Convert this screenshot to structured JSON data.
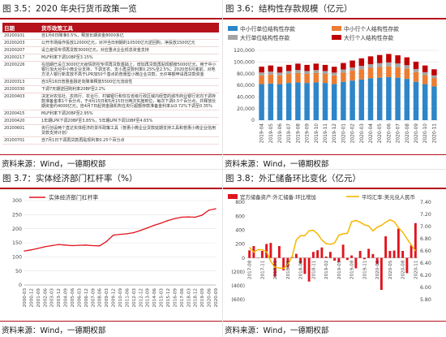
{
  "panels": {
    "p1": {
      "title": "图 3.5：2020 年央行货币政策一览",
      "source": "资料来源：Wind，一德期权部",
      "table_headers": [
        "日期",
        "货币政策工具"
      ],
      "rows": [
        [
          "20200101",
          "自1月6日降准0.5%，释放长期资金8000多亿"
        ],
        [
          "20200203",
          "公开市场操作投放12000亿元，对冲当日到期的10500亿元逆回购，净投放1500亿元"
        ],
        [
          "20200207",
          "设立疫情专项再贷款3000亿元，对应重点企业低息资金支持"
        ],
        [
          "20200217",
          "MLF利率下调10BP至3.15%"
        ],
        [
          "20200226",
          "在前期已设立3000亿元疫情防控专项再贷款基础上，增加再贷款再贴现额度5000亿元，用于中小银行加大对中小微企业支持，下调支农、支小再贷款利率0.25%至2.5%；2020年6月底前，对地方法人银行新发放不高于LPR加50个基点的普惠型小微企业贷款，允许等额申请再贷款资金"
        ],
        [
          "20200313",
          "自3月16日普惠金融定向降准释放5500亿元流动性"
        ],
        [
          "20200330",
          "下调7天期逆回购利率20BP至2.2%"
        ],
        [
          "20200403",
          "决定对农信社、农商行、农合行、村镇银行和仅在省级行政区域内经营的城市商业银行定向下调存款准备金率1个百分点，于4月15日和5月15日分两次实施到位，每次下调0.5个百分点，共释放长期资金约4000亿元；自4月7日起将金融机构在央行超额存款准备金利率从0.72%下调至0.35%"
        ],
        [
          "20200415",
          "MLF利率下调20BP至2.95%"
        ],
        [
          "20200420",
          "1年期LPR下调20BP至3.85%，5年期LPR下调10BP至4.65%"
        ],
        [
          "20200601",
          "央行创设两个直达实体经济的货币政策工具（普惠小微企业贷款延期支持工具和普惠小微企业信用贷款支持计划）"
        ],
        [
          "20200701",
          "自7月1日下调再贷款再贴现利率0.25个百分点"
        ]
      ]
    },
    "p2": {
      "title": "图 3.6：结构性存款规模（亿元）",
      "source": "资料来源：Wind，一德期权部"
    },
    "p3": {
      "title": "图 3.7：实体经济部门杠杆率（%）",
      "source": "资料来源：Wind，一德期权部"
    },
    "p4": {
      "title": "图 3.8：外汇储备环比变化（亿元）",
      "source": "资料来源：Wind，一德期权部"
    }
  },
  "colors": {
    "accent": "#b5121b",
    "blue": "#2e86c8",
    "orange": "#ed7d31",
    "gray": "#a5a5a5",
    "red": "#e0141e",
    "gold": "#f5b700"
  },
  "chart_data": [
    {
      "id": "structured-deposits",
      "type": "bar",
      "stacked": true,
      "legend_position": "top",
      "categories": [
        "2019-04",
        "2019-05",
        "2019-06",
        "2019-07",
        "2019-08",
        "2019-09",
        "2019-10",
        "2019-11",
        "2019-12",
        "2020-01",
        "2020-02",
        "2020-03",
        "2020-04",
        "2020-05",
        "2020-06",
        "2020-07",
        "2020-08",
        "2020-09",
        "2020-10",
        "2020-11"
      ],
      "x_tick_labels": [
        "2019-04",
        "2019-05",
        "2019-06",
        "2019-07",
        "2019-08",
        "2019-09",
        "2019-10",
        "2019-11",
        "2019-12",
        "2020-01",
        "2020-02",
        "2020-03",
        "2020-04",
        "2020-05",
        "2020-06",
        "2020-07",
        "2020-08",
        "2020-09",
        "2020-10",
        "2020-11"
      ],
      "series": [
        {
          "name": "中小行单位结构性存款",
          "color": "#2e86c8",
          "values": [
            62000,
            63000,
            62000,
            64000,
            65000,
            64000,
            65000,
            64000,
            62000,
            66000,
            68000,
            70000,
            72000,
            73000,
            74000,
            73000,
            71000,
            66000,
            62000,
            58000
          ]
        },
        {
          "name": "中小行个人结构性存款",
          "color": "#ed7d31",
          "values": [
            15000,
            15500,
            15000,
            15500,
            16000,
            15500,
            16000,
            15500,
            15000,
            16000,
            17000,
            17500,
            18000,
            18500,
            18500,
            18000,
            17500,
            16500,
            15500,
            14500
          ]
        },
        {
          "name": "大行单位结构性存款",
          "color": "#a5a5a5",
          "values": [
            5000,
            5000,
            4800,
            5000,
            5200,
            5000,
            5200,
            5000,
            4800,
            5200,
            5500,
            5800,
            6200,
            6500,
            6800,
            6500,
            6000,
            5500,
            5000,
            4500
          ]
        },
        {
          "name": "大行个人结构性存款",
          "color": "#c00000",
          "values": [
            10000,
            10500,
            10000,
            10500,
            11000,
            10500,
            11000,
            10500,
            10000,
            11000,
            12000,
            13000,
            13500,
            14000,
            14500,
            14000,
            13500,
            12500,
            11500,
            10500
          ]
        }
      ],
      "ylim": [
        0,
        120000
      ],
      "yticks": [
        0,
        20000,
        40000,
        60000,
        80000,
        100000,
        120000
      ],
      "ytick_labels": [
        "0",
        "20,000",
        "40,000",
        "60,000",
        "80,000",
        "100,000",
        "120,000"
      ],
      "grid": true
    },
    {
      "id": "real-economy-leverage",
      "type": "line",
      "legend_position": "top-left",
      "series": [
        {
          "name": "实体经济部门杠杆率",
          "color": "#e0141e"
        }
      ],
      "x": [
        "2000-03",
        "2000-12",
        "2001-09",
        "2002-06",
        "2003-03",
        "2003-12",
        "2004-09",
        "2005-06",
        "2006-03",
        "2006-12",
        "2007-09",
        "2008-06",
        "2009-03",
        "2009-12",
        "2010-09",
        "2011-06",
        "2012-03",
        "2012-12",
        "2013-09",
        "2014-06",
        "2015-03",
        "2015-12",
        "2016-09",
        "2017-06",
        "2018-03",
        "2018-12",
        "2019-09",
        "2020-06",
        "2020-09"
      ],
      "values": [
        121,
        125,
        130,
        136,
        140,
        144,
        142,
        140,
        141,
        142,
        140,
        139,
        154,
        177,
        180,
        182,
        186,
        194,
        203,
        212,
        220,
        229,
        236,
        241,
        242,
        241,
        248,
        266,
        271
      ],
      "x_tick_labels": [
        "2000-03",
        "2000-12",
        "2001-09",
        "2002-06",
        "2003-03",
        "2003-12",
        "2004-09",
        "2005-06",
        "2006-03",
        "2006-12",
        "2007-09",
        "2008-06",
        "2009-03",
        "2009-12",
        "2010-09",
        "2011-06",
        "2012-03",
        "2012-12",
        "2013-09",
        "2014-06",
        "2015-03",
        "2015-12",
        "2016-09",
        "2017-06",
        "2018-03",
        "2018-12",
        "2019-09",
        "2020-06",
        "2020-09"
      ],
      "ylim": [
        0,
        300
      ],
      "yticks": [
        0,
        50,
        100,
        150,
        200,
        250,
        300
      ],
      "grid": true
    },
    {
      "id": "fx-reserve-change",
      "type": "bar",
      "combo": "bar+line",
      "legend_position": "top",
      "categories": [
        "2017-08",
        "2017-09",
        "2017-10",
        "2017-11",
        "2017-12",
        "2018-01",
        "2018-02",
        "2018-03",
        "2018-04",
        "2018-05",
        "2018-06",
        "2018-07",
        "2018-08",
        "2018-09",
        "2018-10",
        "2018-11",
        "2018-12",
        "2019-01",
        "2019-02",
        "2019-03",
        "2019-04",
        "2019-05",
        "2019-06",
        "2019-07",
        "2019-08",
        "2019-09",
        "2019-10",
        "2019-11",
        "2019-12",
        "2020-01",
        "2020-02",
        "2020-03",
        "2020-04",
        "2020-05",
        "2020-06",
        "2020-07",
        "2020-08",
        "2020-09",
        "2020-10",
        "2020-11"
      ],
      "x_tick_labels": [
        "2017-08",
        "2017-11",
        "2018-02",
        "2018-05",
        "2018-08",
        "2018-11",
        "2019-02",
        "2019-05",
        "2019-08",
        "2019-11",
        "2020-02",
        "2020-05",
        "2020-08",
        "2020-11"
      ],
      "series": [
        {
          "name": "官方储备资产:外汇储备:环比增加",
          "type": "bar",
          "axis": "left",
          "color": "#e0141e",
          "values": [
            108,
            170,
            0,
            100,
            200,
            215,
            -270,
            170,
            -180,
            -140,
            15,
            58,
            -80,
            -230,
            -340,
            85,
            110,
            150,
            20,
            86,
            -40,
            -60,
            190,
            -30,
            35,
            -150,
            100,
            -20,
            130,
            55,
            -90,
            -460,
            310,
            100,
            106,
            420,
            100,
            -220,
            180,
            500
          ]
        },
        {
          "name": "平均汇率:美元兑人民币",
          "type": "line",
          "axis": "right",
          "color": "#f5b700",
          "values": [
            6.66,
            6.58,
            6.62,
            6.62,
            6.59,
            6.43,
            6.33,
            6.32,
            6.31,
            6.38,
            6.5,
            6.78,
            6.85,
            6.85,
            6.93,
            6.94,
            6.88,
            6.78,
            6.72,
            6.71,
            6.73,
            6.86,
            6.88,
            6.89,
            7.08,
            7.1,
            7.07,
            7.03,
            7.01,
            6.93,
            6.99,
            7.02,
            7.07,
            7.11,
            7.08,
            6.98,
            6.91,
            6.8,
            6.7,
            6.6
          ]
        }
      ],
      "ylim": [
        -600,
        800
      ],
      "yticks": [
        -600,
        -400,
        -200,
        0,
        200,
        400,
        600,
        800
      ],
      "ytick_labels": [
        "(600)",
        "(400)",
        "(200)",
        "0",
        "200",
        "400",
        "600",
        "800"
      ],
      "y2lim": [
        5.8,
        7.4
      ],
      "y2ticks": [
        5.8,
        6.0,
        6.2,
        6.4,
        6.6,
        6.8,
        7.0,
        7.2,
        7.4
      ],
      "y2tick_labels": [
        "5.80",
        "6.00",
        "6.20",
        "6.40",
        "6.60",
        "6.80",
        "7.00",
        "7.20",
        "7.40"
      ],
      "grid": false
    }
  ]
}
